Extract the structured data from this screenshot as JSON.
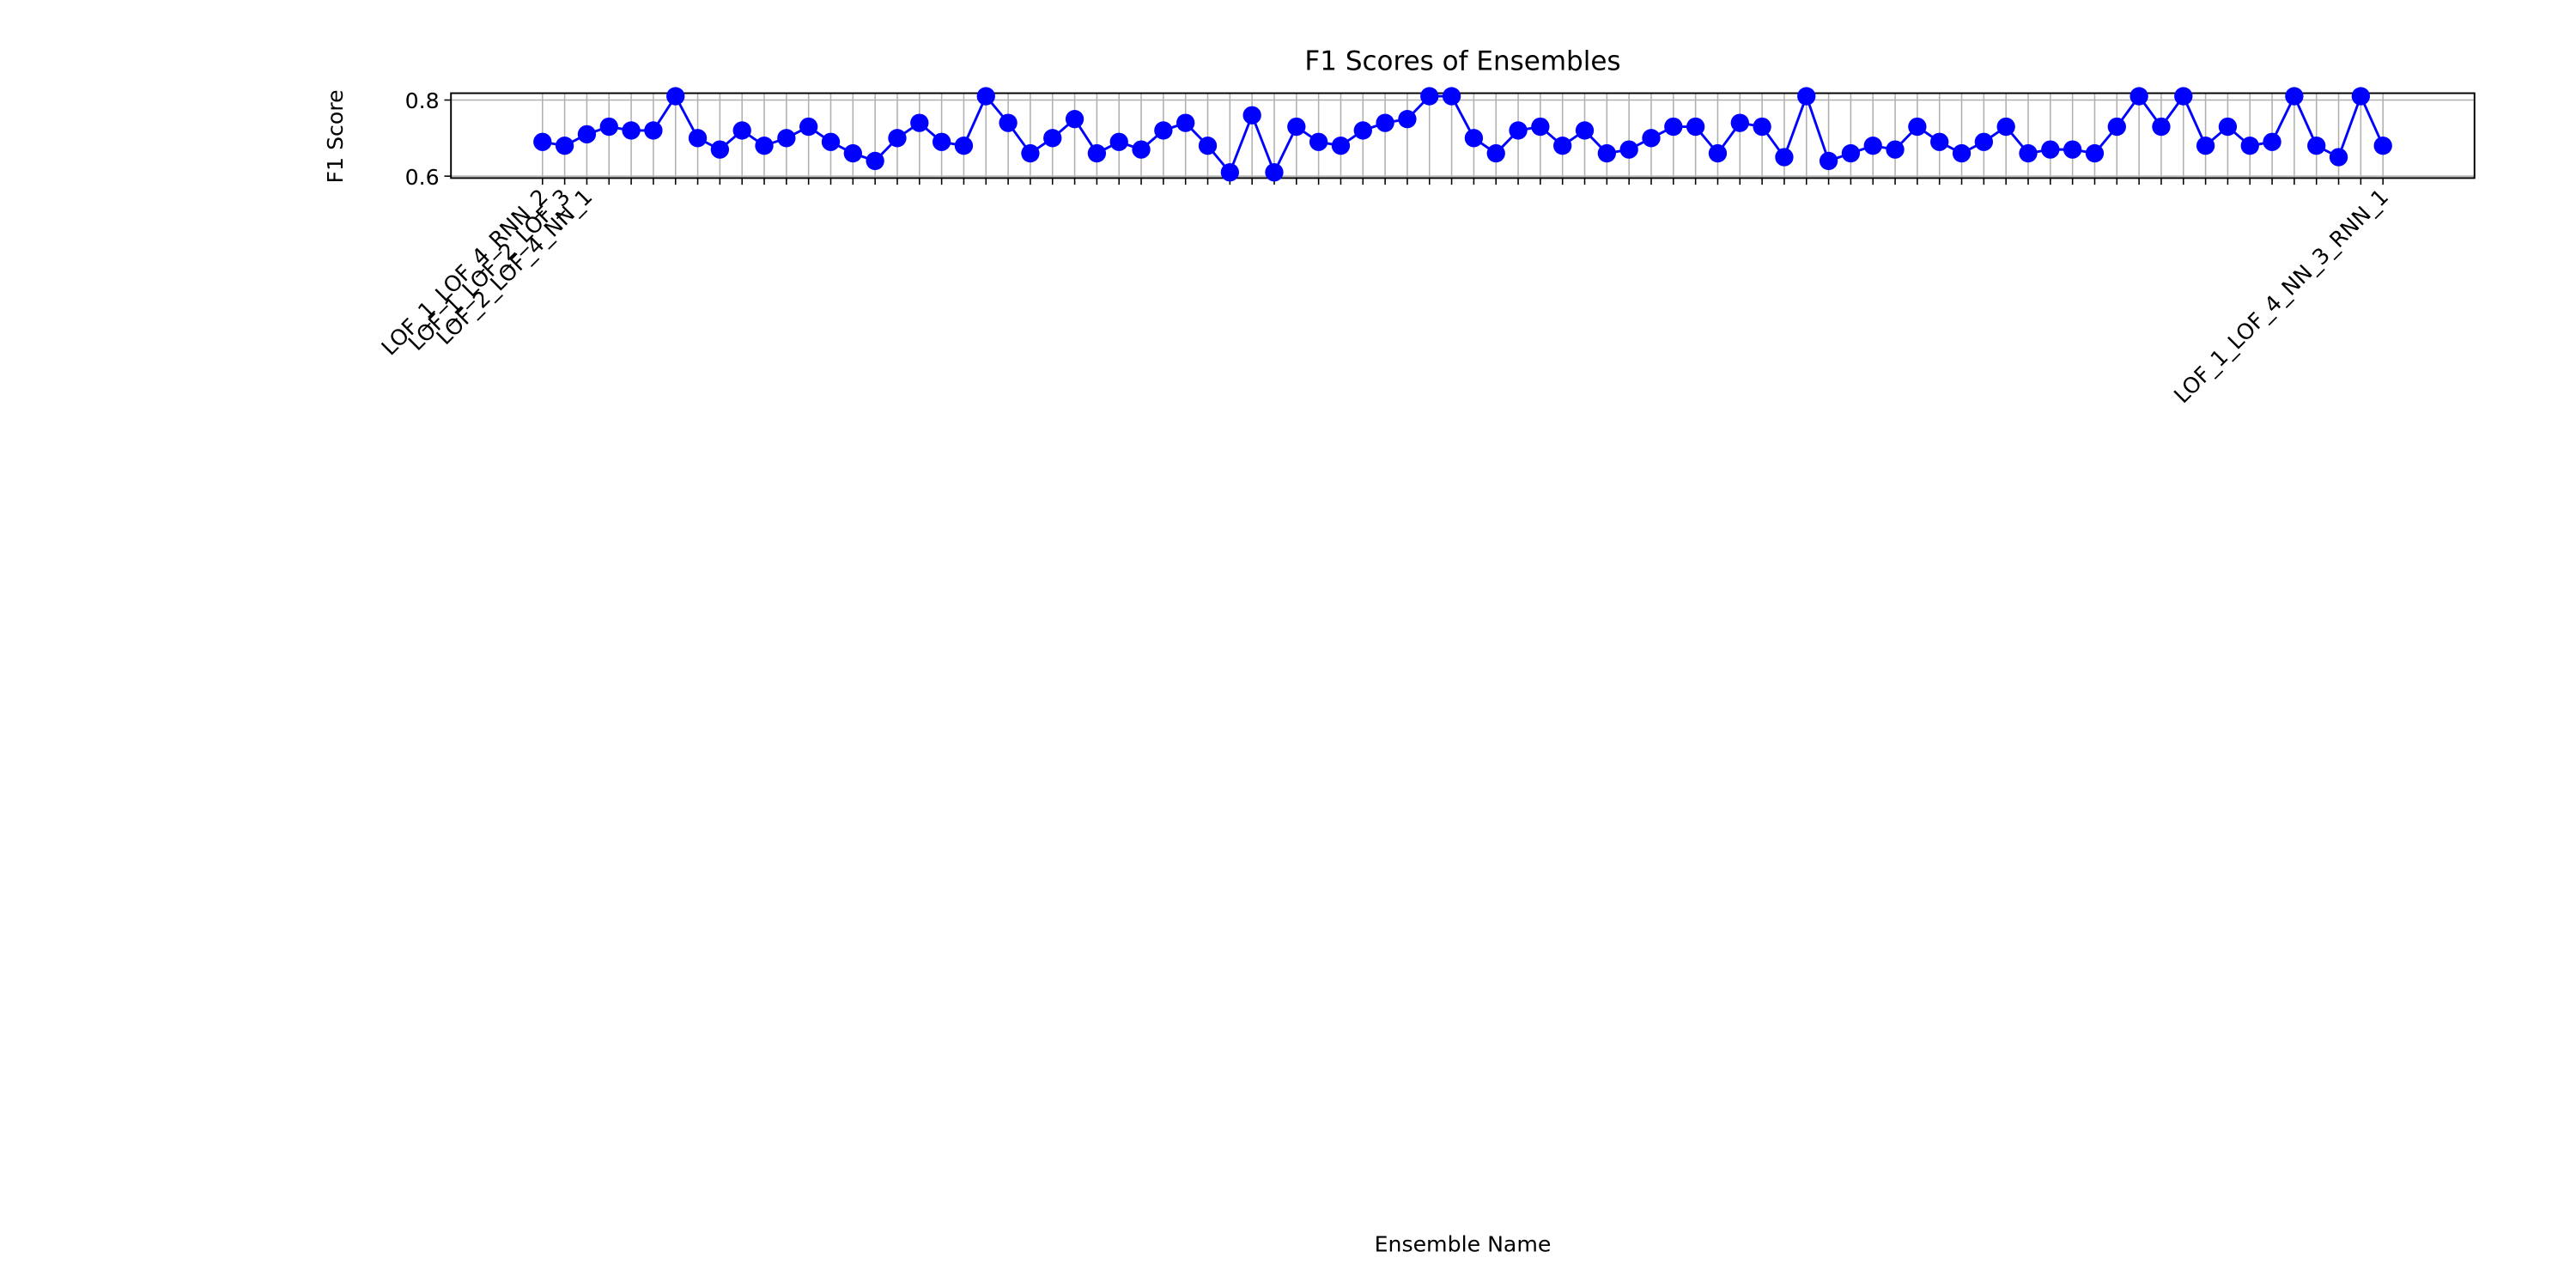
{
  "chart_data": {
    "type": "line",
    "title": "F1 Scores of Ensembles",
    "x_label": "Ensemble Name",
    "y_label": "F1 Score",
    "categories": [
      "LOF_1_LOF_4_RNN_2",
      "LOF_1_LOF_2_LOF_3",
      "LOF_2_LOF_4_NN_1",
      null,
      null,
      null,
      null,
      null,
      null,
      null,
      null,
      null,
      null,
      null,
      null,
      null,
      null,
      null,
      null,
      null,
      null,
      null,
      null,
      null,
      null,
      null,
      null,
      null,
      null,
      null,
      null,
      null,
      null,
      null,
      null,
      null,
      null,
      null,
      null,
      null,
      null,
      null,
      null,
      null,
      null,
      null,
      null,
      null,
      null,
      null,
      null,
      null,
      null,
      null,
      null,
      null,
      null,
      null,
      null,
      null,
      null,
      null,
      null,
      null,
      null,
      null,
      null,
      null,
      null,
      null,
      null,
      null,
      null,
      null,
      null,
      null,
      null,
      null,
      null,
      null,
      null,
      null,
      null,
      "LOF_1_LOF_4_NN_3_RNN_1"
    ],
    "series": [
      {
        "name": "F1 Score",
        "color": "#0000ff",
        "values": [
          0.69,
          0.68,
          0.71,
          0.73,
          0.72,
          0.72,
          0.81,
          0.7,
          0.67,
          0.72,
          0.68,
          0.7,
          0.73,
          0.69,
          0.66,
          0.64,
          0.7,
          0.74,
          0.69,
          0.68,
          0.81,
          0.74,
          0.66,
          0.7,
          0.75,
          0.66,
          0.69,
          0.67,
          0.72,
          0.74,
          0.68,
          0.61,
          0.76,
          0.61,
          0.73,
          0.69,
          0.68,
          0.72,
          0.74,
          0.75,
          0.81,
          0.81,
          0.7,
          0.66,
          0.72,
          0.73,
          0.68,
          0.72,
          0.66,
          0.67,
          0.7,
          0.73,
          0.73,
          0.66,
          0.74,
          0.73,
          0.65,
          0.81,
          0.64,
          0.66,
          0.68,
          0.67,
          0.73,
          0.69,
          0.66,
          0.69,
          0.73,
          0.66,
          0.67,
          0.67,
          0.66,
          0.73,
          0.81,
          0.73,
          0.81,
          0.68,
          0.73,
          0.68,
          0.69,
          0.81,
          0.68,
          0.65,
          0.81,
          0.68
        ]
      }
    ],
    "ylim": [
      0.595,
      0.818
    ],
    "yticks": [
      0.6,
      0.8
    ],
    "grid": true
  }
}
